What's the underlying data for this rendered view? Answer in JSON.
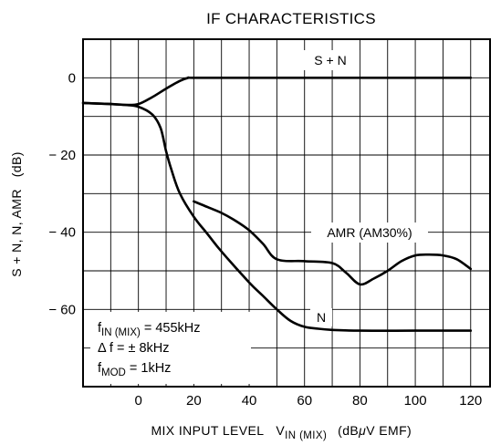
{
  "chart_data": {
    "type": "line",
    "title": "IF CHARACTERISTICS",
    "xlabel": {
      "main": "MIX INPUT LEVEL",
      "symbol": "V",
      "symbol_sub": "IN (MIX)",
      "unit_open": "(dB",
      "unit_greek": "μ",
      "unit_close": "V EMF)"
    },
    "ylabel": "S + N, N, AMR   (dB)",
    "xlim": [
      -20,
      127
    ],
    "ylim": [
      -80,
      10
    ],
    "xticks": [
      {
        "value": 0,
        "label": "0"
      },
      {
        "value": 20,
        "label": "20"
      },
      {
        "value": 40,
        "label": "40"
      },
      {
        "value": 60,
        "label": "60"
      },
      {
        "value": 80,
        "label": "80"
      },
      {
        "value": 100,
        "label": "100"
      },
      {
        "value": 120,
        "label": "120"
      }
    ],
    "yticks": [
      {
        "value": 0,
        "label": "0"
      },
      {
        "value": -20,
        "label": "− 20"
      },
      {
        "value": -40,
        "label": "− 40"
      },
      {
        "value": -60,
        "label": "− 60"
      }
    ],
    "grid": true,
    "series": [
      {
        "name": "S + N",
        "points": [
          [
            -20,
            -6.5
          ],
          [
            -10,
            -6.8
          ],
          [
            -5,
            -7.0
          ],
          [
            0,
            -6.8
          ],
          [
            5,
            -5.0
          ],
          [
            10,
            -2.8
          ],
          [
            15,
            -0.8
          ],
          [
            18,
            0
          ],
          [
            20,
            0
          ],
          [
            40,
            0
          ],
          [
            60,
            0
          ],
          [
            80,
            0
          ],
          [
            100,
            0
          ],
          [
            120,
            0
          ]
        ]
      },
      {
        "name": "N",
        "points": [
          [
            -20,
            -6.5
          ],
          [
            -10,
            -6.8
          ],
          [
            -5,
            -7.0
          ],
          [
            0,
            -7.5
          ],
          [
            5,
            -9.5
          ],
          [
            8,
            -13
          ],
          [
            10,
            -19
          ],
          [
            12,
            -24
          ],
          [
            15,
            -30
          ],
          [
            20,
            -36
          ],
          [
            25,
            -40.5
          ],
          [
            30,
            -45
          ],
          [
            40,
            -53
          ],
          [
            45,
            -56.5
          ],
          [
            50,
            -60
          ],
          [
            55,
            -63
          ],
          [
            60,
            -64.5
          ],
          [
            65,
            -65
          ],
          [
            70,
            -65.3
          ],
          [
            80,
            -65.5
          ],
          [
            100,
            -65.5
          ],
          [
            120,
            -65.5
          ]
        ]
      },
      {
        "name": "AMR (AM30%)",
        "points": [
          [
            20,
            -32
          ],
          [
            25,
            -33.5
          ],
          [
            30,
            -35
          ],
          [
            35,
            -37
          ],
          [
            40,
            -39.5
          ],
          [
            45,
            -43
          ],
          [
            50,
            -47
          ],
          [
            60,
            -47.5
          ],
          [
            70,
            -48
          ],
          [
            75,
            -50.5
          ],
          [
            80,
            -53.5
          ],
          [
            85,
            -52
          ],
          [
            90,
            -50
          ],
          [
            95,
            -47.5
          ],
          [
            100,
            -46
          ],
          [
            105,
            -45.8
          ],
          [
            110,
            -46
          ],
          [
            115,
            -47
          ],
          [
            120,
            -49.5
          ]
        ]
      }
    ],
    "annotations": {
      "sn_label": "S + N",
      "n_label": "N",
      "amr_label": "AMR (AM30%)",
      "conditions": [
        {
          "main": "f",
          "sub": "IN (MIX)",
          "rest": " = 455kHz"
        },
        {
          "main": "Δ f = ± 8kHz",
          "sub": "",
          "rest": ""
        },
        {
          "main": "f",
          "sub": "MOD",
          "rest": " = 1kHz"
        }
      ]
    }
  }
}
